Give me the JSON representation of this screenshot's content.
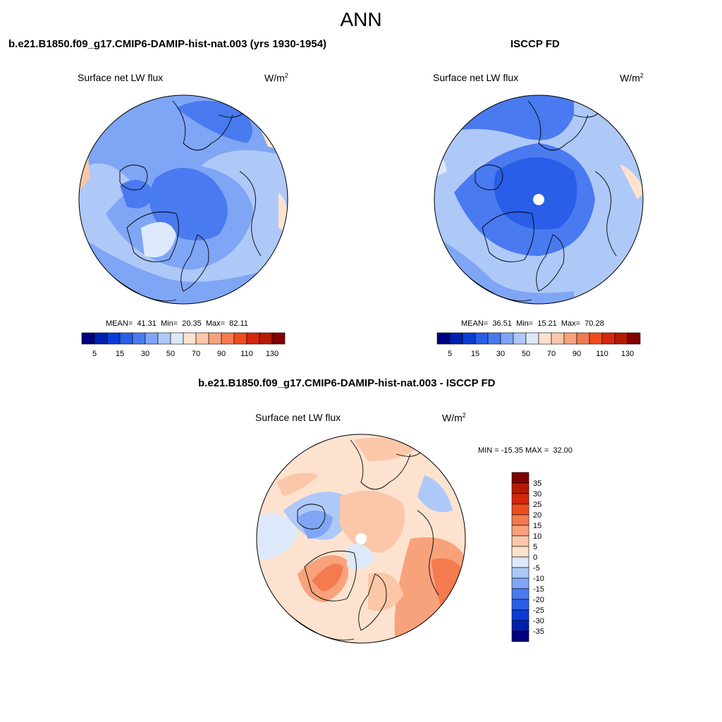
{
  "title": "ANN",
  "colors": {
    "scale": [
      "#00007f",
      "#0020b0",
      "#0a3bd6",
      "#2a5ee8",
      "#4a7af0",
      "#7fa5f5",
      "#aec8f8",
      "#dde9fb",
      "#fde3cf",
      "#fbc7a8",
      "#f8a27c",
      "#f47a4f",
      "#ee4d1f",
      "#d6260c",
      "#b51a05",
      "#800000"
    ],
    "land_outline": "#000000"
  },
  "panels": [
    {
      "id": "model",
      "title": "b.e21.B1850.f09_g17.CMIP6-DAMIP-hist-nat.003 (yrs 1930-1954)",
      "variable": "Surface net LW flux",
      "unit_base": "W/m",
      "unit_exp": "2",
      "stats": "MEAN=  41.31  Min=  20.35  Max=  82.11",
      "colorbar_ticks": [
        "5",
        "15",
        "30",
        "50",
        "70",
        "90",
        "110",
        "130"
      ]
    },
    {
      "id": "obs",
      "title": "ISCCP FD",
      "variable": "Surface net LW flux",
      "unit_base": "W/m",
      "unit_exp": "2",
      "stats": "MEAN=  36.51  Min=  15.21  Max=  70.28",
      "colorbar_ticks": [
        "5",
        "15",
        "30",
        "50",
        "70",
        "90",
        "110",
        "130"
      ]
    },
    {
      "id": "diff",
      "title": "b.e21.B1850.f09_g17.CMIP6-DAMIP-hist-nat.003 - ISCCP FD",
      "variable": "Surface net LW flux",
      "unit_base": "W/m",
      "unit_exp": "2",
      "stats": "MIN = -15.35 MAX =  32.00",
      "colorbar_ticks": [
        "35",
        "30",
        "25",
        "20",
        "15",
        "10",
        "5",
        "0",
        "-5",
        "-10",
        "-15",
        "-20",
        "-25",
        "-30",
        "-35"
      ]
    }
  ]
}
